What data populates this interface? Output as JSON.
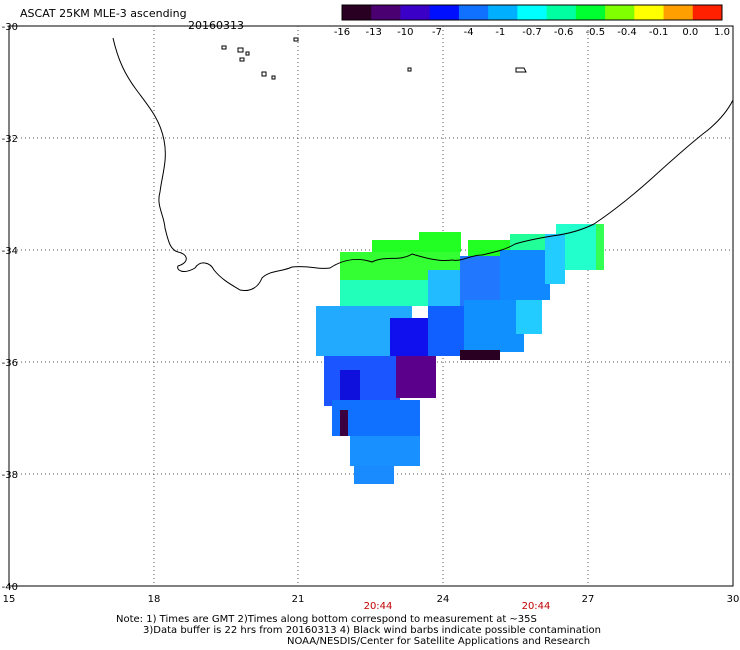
{
  "title": "ASCAT 25KM MLE-3 ascending",
  "date": "20160313",
  "colorbar": {
    "labels": [
      "-16",
      "-13",
      "-10",
      "-7",
      "-4",
      "-1",
      "-0.7",
      "-0.6",
      "-0.5",
      "-0.4",
      "-0.1",
      "0.0",
      "1.0"
    ],
    "colors": [
      "#2a0022",
      "#4a0070",
      "#3a00c8",
      "#0010ff",
      "#1070ff",
      "#00b0ff",
      "#00ffff",
      "#00ffa0",
      "#00ff30",
      "#80ff00",
      "#ffff00",
      "#ffa000",
      "#ff2000"
    ]
  },
  "axes": {
    "lon_labels": [
      "15",
      "18",
      "21",
      "24",
      "27",
      "30"
    ],
    "lat_labels": [
      "-30",
      "-32",
      "-34",
      "-36",
      "-38",
      "-40"
    ]
  },
  "times": [
    "20:44",
    "20:44"
  ],
  "notes": [
    "Note: 1) Times are GMT 2)Times along bottom correspond to measurement at ~35S",
    "3)Data buffer is 22 hrs from 20160313 4) Black wind barbs indicate possible contamination",
    "NOAA/NESDIS/Center for Satellite Applications and Research"
  ]
}
